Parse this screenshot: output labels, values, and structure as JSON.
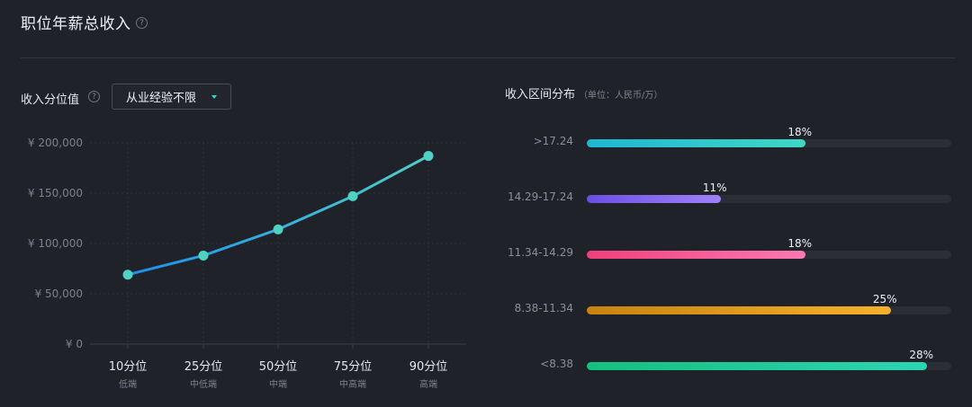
{
  "header": {
    "title": "职位年薪总收入",
    "help_icon": "?"
  },
  "percentile_panel": {
    "label": "收入分位值",
    "help_icon": "?",
    "select_value": "从业经验不限"
  },
  "distribution_panel": {
    "title": "收入区间分布",
    "unit": "（单位：人民币/万）"
  },
  "chart_data": [
    {
      "type": "line",
      "categories": [
        "10分位",
        "25分位",
        "50分位",
        "75分位",
        "90分位"
      ],
      "category_sublabels": [
        "低端",
        "中低端",
        "中端",
        "中高端",
        "高端"
      ],
      "series": [
        {
          "values": [
            69000,
            88000,
            114000,
            147000,
            187000
          ]
        }
      ],
      "yticks": [
        "¥ 200,000",
        "¥ 150,000",
        "¥ 100,000",
        "¥ 50,000",
        "¥ 0"
      ],
      "ylim": [
        0,
        200000
      ],
      "colors": {
        "line_start": "#1c8ff0",
        "line_end": "#4fcfc5",
        "marker": "#4fd1c4",
        "grid": "#2f323b"
      }
    },
    {
      "type": "bar",
      "categories": [
        ">17.24",
        "14.29-17.24",
        "11.34-14.29",
        "8.38-11.34",
        "<8.38"
      ],
      "values": [
        18,
        11,
        18,
        25,
        28
      ],
      "labels": [
        "18%",
        "11%",
        "18%",
        "25%",
        "28%"
      ],
      "xlim": [
        0,
        30
      ],
      "colors": [
        [
          "#1fb6d3",
          "#3ed8c4"
        ],
        [
          "#6b4fe6",
          "#a181f7"
        ],
        [
          "#f0407a",
          "#fb79b2"
        ],
        [
          "#c7830e",
          "#f6b12b"
        ],
        [
          "#12c07f",
          "#2cd6b4"
        ]
      ]
    }
  ]
}
